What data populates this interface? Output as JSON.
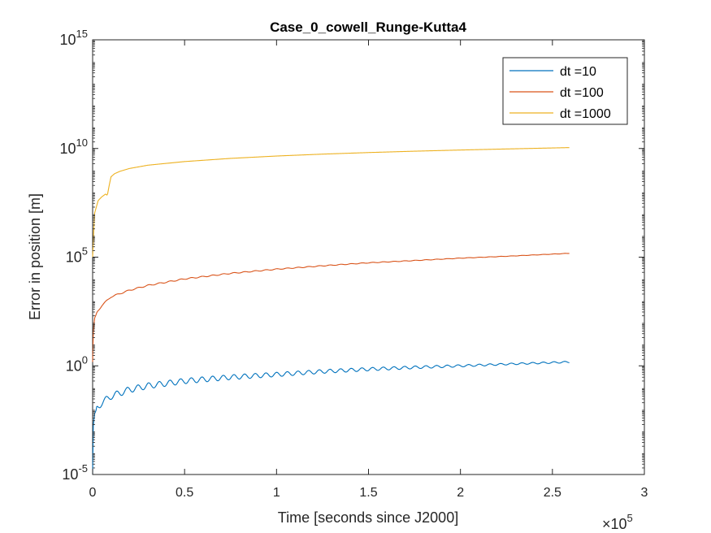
{
  "chart_data": {
    "type": "line",
    "title": "Case_0_cowell_Runge-Kutta4",
    "xlabel": "Time [seconds since J2000]",
    "ylabel": "Error in position [m]",
    "x_exponent_label": "×10",
    "x_exponent_value": "5",
    "xlim": [
      0,
      300000
    ],
    "ylim": [
      1e-05,
      1000000000000000.0
    ],
    "yscale": "log",
    "grid": false,
    "legend_position": "top-right",
    "x_tick_values": [
      0,
      50000,
      100000,
      150000,
      200000,
      250000,
      300000
    ],
    "x_tick_labels": [
      "0",
      "0.5",
      "1",
      "1.5",
      "2",
      "2.5",
      "3"
    ],
    "y_tick_values": [
      1e-05,
      1,
      100000,
      10000000000,
      1000000000000000.0
    ],
    "y_tick_labels": [
      {
        "base": "10",
        "exp": "-5"
      },
      {
        "base": "10",
        "exp": "0"
      },
      {
        "base": "10",
        "exp": "5"
      },
      {
        "base": "10",
        "exp": "10"
      },
      {
        "base": "10",
        "exp": "15"
      }
    ],
    "series": [
      {
        "name": "dt =10",
        "color": "#0072BD",
        "oscillation": 0.15,
        "x": [
          0,
          300,
          1000,
          2500,
          5000,
          10000,
          20000,
          30000,
          50000,
          75000,
          100000,
          125000,
          150000,
          175000,
          200000,
          225000,
          259200
        ],
        "y": [
          1e-05,
          0.0015,
          0.006,
          0.012,
          0.02,
          0.04,
          0.08,
          0.12,
          0.2,
          0.3,
          0.4,
          0.55,
          0.7,
          0.85,
          1.0,
          1.2,
          1.5
        ]
      },
      {
        "name": "dt =100",
        "color": "#D95319",
        "oscillation": 0.03,
        "x": [
          0,
          300,
          1000,
          2500,
          5000,
          10000,
          20000,
          30000,
          50000,
          75000,
          100000,
          125000,
          150000,
          175000,
          200000,
          225000,
          259200
        ],
        "y": [
          1.5,
          30,
          150,
          300,
          600,
          1500,
          3000,
          5000,
          10000,
          18000,
          28000,
          40000,
          55000,
          70000,
          90000,
          110000,
          150000
        ]
      },
      {
        "name": "dt =1000",
        "color": "#EDB120",
        "oscillation": 0.0,
        "x": [
          0,
          1000,
          3000,
          5000,
          7000,
          8000,
          9000,
          10000,
          12000,
          15000,
          20000,
          30000,
          50000,
          75000,
          100000,
          125000,
          150000,
          175000,
          200000,
          225000,
          259200
        ],
        "y": [
          100000,
          10000000,
          40000000,
          60000000,
          80000000,
          70000000,
          200000000,
          500000000,
          700000000,
          900000000,
          1200000000,
          1700000000,
          2500000000,
          3500000000,
          4500000000,
          5500000000,
          6500000000,
          7500000000,
          8500000000,
          9500000000,
          11000000000
        ]
      }
    ]
  }
}
